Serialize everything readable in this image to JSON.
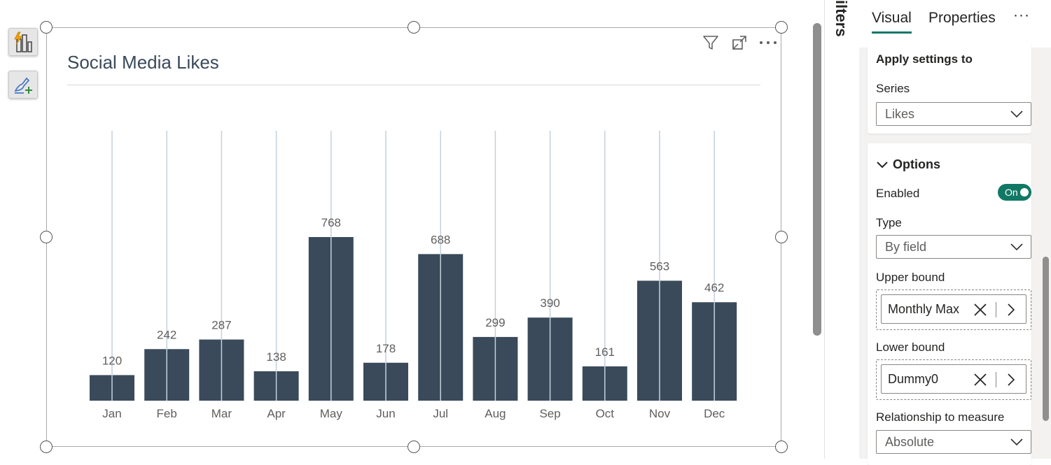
{
  "toolbar": {
    "build_visual_icon": "build-visual-icon",
    "format_visual_icon": "format-visual-icon"
  },
  "visual": {
    "title": "Social Media Likes",
    "header_icons": [
      "filter-icon",
      "focus-mode-icon",
      "more-options-icon"
    ]
  },
  "chart_data": {
    "type": "bar",
    "title": "Social Media Likes",
    "categories": [
      "Jan",
      "Feb",
      "Mar",
      "Apr",
      "May",
      "Jun",
      "Jul",
      "Aug",
      "Sep",
      "Oct",
      "Nov",
      "Dec"
    ],
    "series": [
      {
        "name": "Likes",
        "values": [
          120,
          242,
          287,
          138,
          768,
          178,
          688,
          299,
          390,
          161,
          563,
          462
        ],
        "color": "#3a4a5a",
        "error_bars": {
          "upper_bound": "Monthly Max",
          "lower_bound": "Dummy0"
        }
      }
    ],
    "data_labels": true,
    "grid": false,
    "error_bar_color": "#c3d1dc"
  },
  "filters_pane": {
    "label": "ilters"
  },
  "format_pane": {
    "tabs": [
      {
        "label": "Visual",
        "active": true
      },
      {
        "label": "Properties",
        "active": false
      }
    ],
    "more_label": "···",
    "apply_settings": {
      "heading": "Apply settings to",
      "series_label": "Series",
      "series_value": "Likes"
    },
    "options": {
      "heading": "Options",
      "enabled_label": "Enabled",
      "enabled_toggle": "On",
      "type_label": "Type",
      "type_value": "By field",
      "upper_bound_label": "Upper bound",
      "upper_bound_value": "Monthly Max",
      "lower_bound_label": "Lower bound",
      "lower_bound_value": "Dummy0",
      "relationship_label": "Relationship to measure",
      "relationship_value": "Absolute"
    },
    "accent_color": "#117865"
  }
}
